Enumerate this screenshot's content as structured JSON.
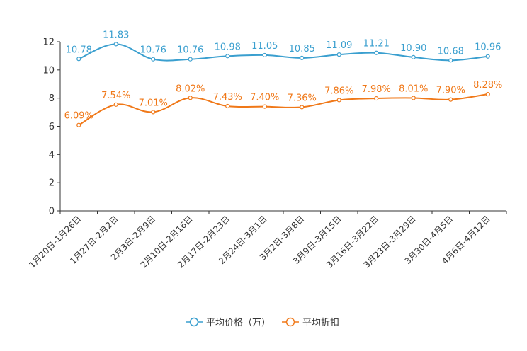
{
  "chart_data": {
    "type": "line",
    "title": "",
    "xlabel": "",
    "ylabel": "",
    "ylim": [
      0,
      12
    ],
    "yticks": [
      "0",
      "2",
      "4",
      "6",
      "8",
      "10",
      "12"
    ],
    "grid": false,
    "legend_position": "bottom-center",
    "categories": [
      "1月20日-1月26日",
      "1月27日-2月2日",
      "2月3日-2月9日",
      "2月10日-2月16日",
      "2月17日-2月23日",
      "2月24日-3月1日",
      "3月2日-3月8日",
      "3月9日-3月15日",
      "3月16日-3月22日",
      "3月23日-3月29日",
      "3月30日-4月5日",
      "4月6日-4月12日"
    ],
    "series": [
      {
        "name": "平均价格（万）",
        "color": "#3a9fcf",
        "values": [
          10.78,
          11.83,
          10.76,
          10.76,
          10.98,
          11.05,
          10.85,
          11.09,
          11.21,
          10.9,
          10.68,
          10.96
        ],
        "labels": [
          "10.78",
          "11.83",
          "10.76",
          "10.76",
          "10.98",
          "11.05",
          "10.85",
          "11.09",
          "11.21",
          "10.90",
          "10.68",
          "10.96"
        ]
      },
      {
        "name": "平均折扣",
        "color": "#f07818",
        "values": [
          6.09,
          7.54,
          7.01,
          8.02,
          7.43,
          7.4,
          7.36,
          7.86,
          7.98,
          8.01,
          7.9,
          8.28
        ],
        "labels": [
          "6.09%",
          "7.54%",
          "7.01%",
          "8.02%",
          "7.43%",
          "7.40%",
          "7.36%",
          "7.86%",
          "7.98%",
          "8.01%",
          "7.90%",
          "8.28%"
        ]
      }
    ]
  }
}
